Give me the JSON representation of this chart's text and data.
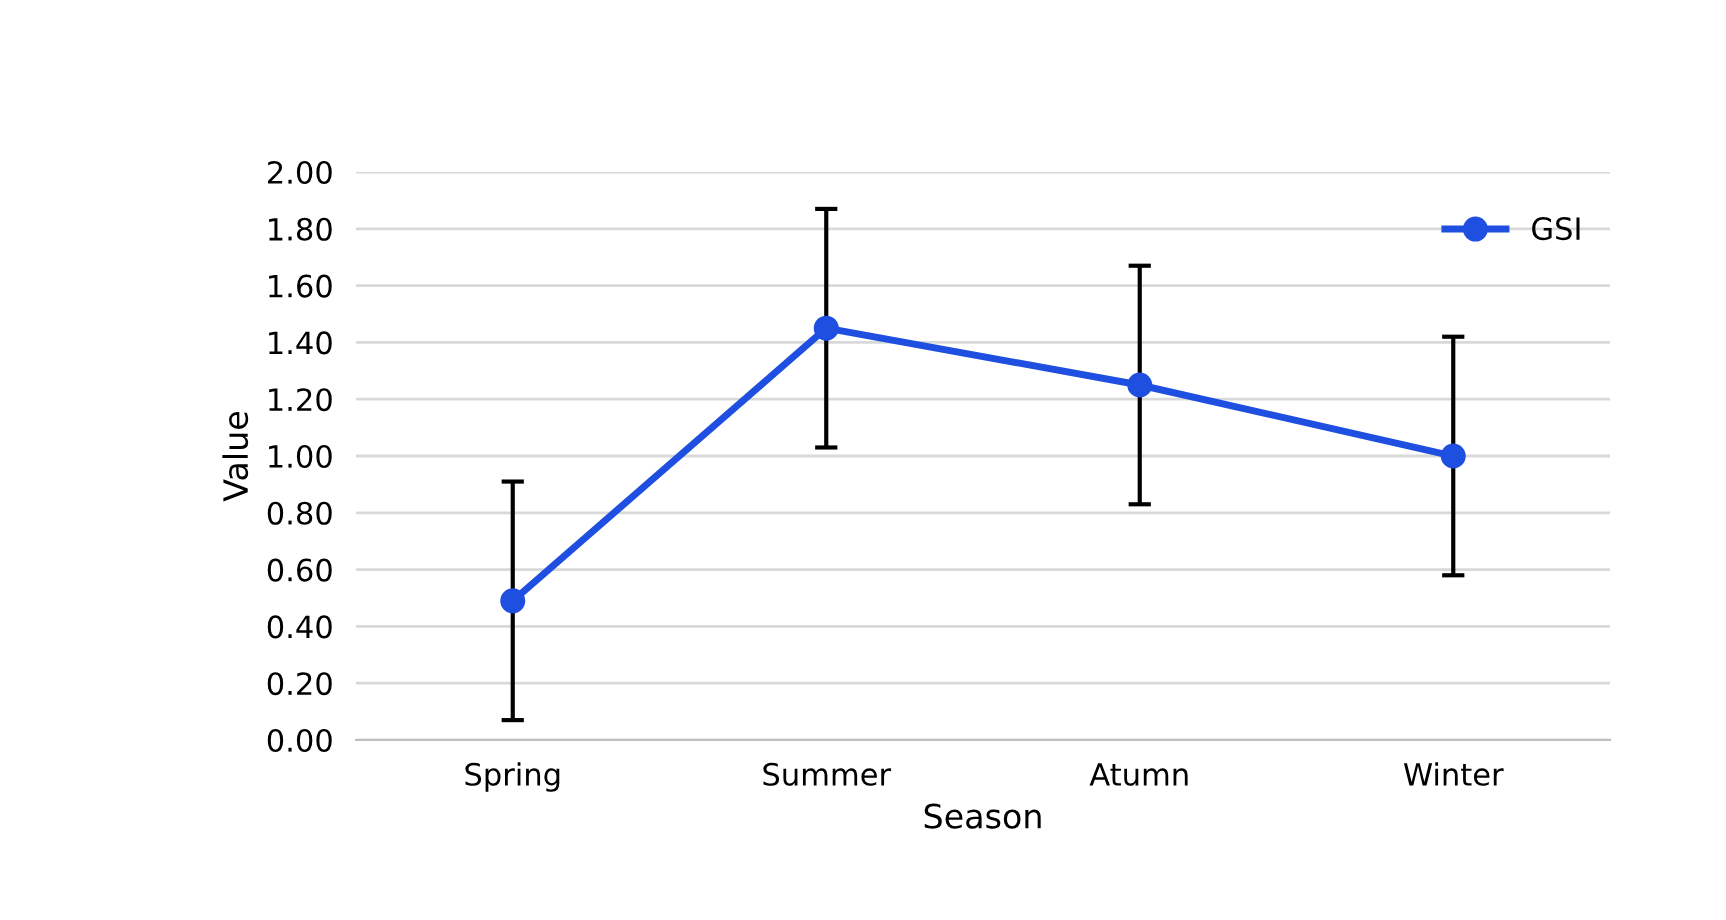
{
  "chart_data": {
    "type": "line",
    "xlabel": "Season",
    "ylabel": "Value",
    "categories": [
      "Spring",
      "Summer",
      "Atumn",
      "Winter"
    ],
    "series": [
      {
        "name": "GSI",
        "color": "#1f4fe0",
        "values": [
          0.49,
          1.45,
          1.25,
          1.0
        ],
        "errors": [
          0.42,
          0.42,
          0.42,
          0.42
        ]
      }
    ],
    "ylim": [
      0,
      2
    ],
    "yticks": [
      {
        "value": 0,
        "label": "0.00"
      },
      {
        "value": 0.2,
        "label": "0.20"
      },
      {
        "value": 0.4,
        "label": "0.40"
      },
      {
        "value": 0.6,
        "label": "0.60"
      },
      {
        "value": 0.8,
        "label": "0.80"
      },
      {
        "value": 1.0,
        "label": "1.00"
      },
      {
        "value": 1.2,
        "label": "1.20"
      },
      {
        "value": 1.4,
        "label": "1.40"
      },
      {
        "value": 1.6,
        "label": "1.60"
      },
      {
        "value": 1.8,
        "label": "1.80"
      },
      {
        "value": 2.0,
        "label": "2.00"
      }
    ],
    "grid": "y",
    "legend": "top right",
    "marker": "circle",
    "line_style": "solid"
  }
}
